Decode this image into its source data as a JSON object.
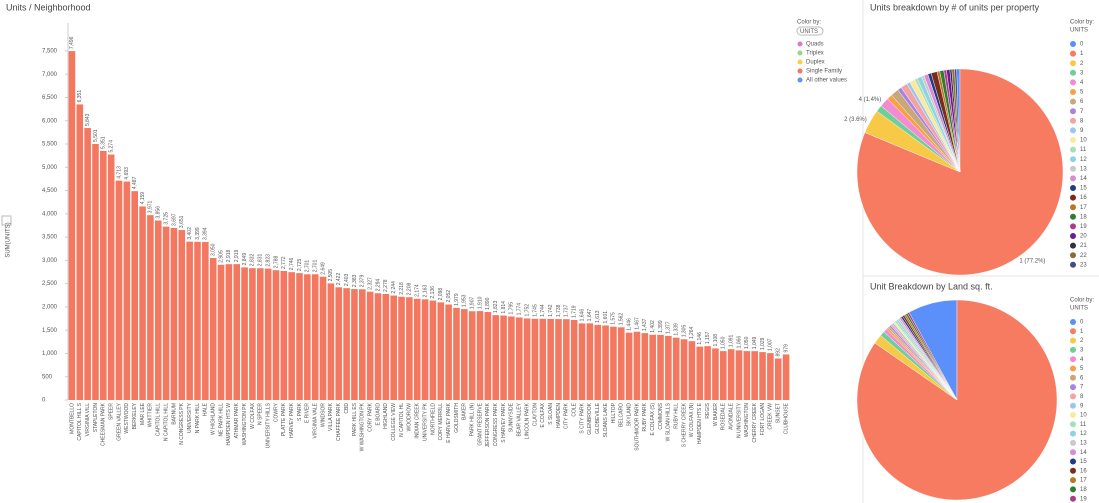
{
  "chart_data": [
    {
      "type": "bar",
      "title": "Units / Neighborhood",
      "y_label": "SUM(UNITS)",
      "color": "#f4775f",
      "legend_title": "Color by:",
      "legend_field": "UNITS",
      "legend": [
        {
          "name": "Quads",
          "color": "#e377c2"
        },
        {
          "name": "Triplex",
          "color": "#8fd98f"
        },
        {
          "name": "Duplex",
          "color": "#f7d04a"
        },
        {
          "name": "Single Family",
          "color": "#f4775f"
        },
        {
          "name": "All other values",
          "color": "#6b8ff0"
        }
      ],
      "categories": [
        "MONTBELLO",
        "CAPITOL HILL S",
        "VIRGINIA VILL",
        "STAPLETON",
        "CHEESMAN PARK",
        "SPEER",
        "GREEN VALLEY",
        "WESTWOOD",
        "BERKELEY",
        "MAR LEE",
        "WHITTIER",
        "CAPITOL HILL",
        "N CAPITOL HILL",
        "BARNUM",
        "N CONGRESS PK",
        "UNIVERSITY",
        "N PARK HILL",
        "HALE",
        "W HIGHLAND",
        "NE PARK HILL",
        "HAMPDEN HTS W",
        "ATHMAR PARK",
        "WASHINGTON PK",
        "W COLFAX",
        "N SPEER",
        "UNIVERSITY HILLS",
        "COWRY",
        "PLATTE PARK",
        "HARVEY PARK",
        "S PARK",
        "E RIVER",
        "VIRGINIA VALE",
        "WINDSOR",
        "VILLA PARK",
        "CHAFFEE PARK",
        "CBD",
        "PARK HILL ES",
        "W WASHINGTON PK",
        "CORY PARK",
        "E BOARD",
        "HIGHLAND",
        "COLLEGE VIEW",
        "N CAPITOL HL",
        "WOODROW",
        "INDIAN CREEK",
        "UNIVERSITY PK",
        "NORTHFIELD",
        "CORY MERRILL",
        "E HARVEY PARK",
        "GOLDSMITH",
        "BAKER",
        "PARK HILL (N)",
        "GRANT RESERVE",
        "JEFFERSON PARK",
        "CONGRESS PARK",
        "S HARVEY PARK",
        "SUNNYSIDE",
        "BEAR VALLEY",
        "LINCOLN PARK",
        "CLAYTON",
        "E COLFAX",
        "S SLOAN",
        "HAMPDEN",
        "CITY PARK",
        "COLE",
        "S CITY PARK",
        "GLENBROOK",
        "GLOBEVILLE",
        "SLOANS LAKE",
        "HILLTOP",
        "BELCARO",
        "SKYLAND",
        "SOUTHMOOR PARK",
        "RUBY PARK",
        "E COLFAX (S)",
        "COMMONS",
        "W SLOAN HILLS",
        "RUBY HILL",
        "S CHERRY CREEK",
        "W COLFAX (N)",
        "HAMPDEN HTS E",
        "REGIS",
        "W BAKER",
        "ROSEDALE",
        "AVONDALE",
        "N UNIVERSITY",
        "WASHINGTON",
        "CHERRY CREEK",
        "FORT LOGAN",
        "CREEK VW",
        "SUNSET",
        "CLUBHOUSE"
      ],
      "values": [
        7496,
        6351,
        5843,
        5501,
        5351,
        5274,
        4713,
        4693,
        4487,
        4159,
        3971,
        3856,
        3725,
        3697,
        3651,
        3402,
        3399,
        3394,
        3050,
        2905,
        2918,
        2919,
        2849,
        2832,
        2831,
        2823,
        2788,
        2772,
        2746,
        2725,
        2701,
        2701,
        2649,
        2505,
        2422,
        2403,
        2383,
        2379,
        2327,
        2294,
        2278,
        2244,
        2218,
        2208,
        2174,
        2163,
        2136,
        2098,
        2052,
        1979,
        1953,
        1907,
        1910,
        1890,
        1823,
        1814,
        1795,
        1774,
        1752,
        1745,
        1744,
        1742,
        1738,
        1737,
        1719,
        1646,
        1647,
        1613,
        1601,
        1575,
        1562,
        1446,
        1467,
        1437,
        1402,
        1399,
        1377,
        1339,
        1305,
        1264,
        1146,
        1157,
        1108,
        1050,
        1091,
        1066,
        1050,
        1049,
        1029,
        1007,
        892,
        979
      ],
      "value_labels": [
        "7,496",
        "6,351",
        "5,843",
        "5,501",
        "5,351",
        "5,274",
        "4,713",
        "4,693",
        "4,487",
        "4,159",
        "3,971",
        "3,856",
        "3,725",
        "3,697",
        "3,651",
        "3,402",
        "3,399",
        "3,394",
        "3,050",
        "2,905",
        "2,918",
        "2,919",
        "2,849",
        "2,832",
        "2,831",
        "2,823",
        "2,788",
        "2,772",
        "2,746",
        "2,725",
        "2,701",
        "2,701",
        "2,649",
        "2,505",
        "2,422",
        "2,403",
        "2,383",
        "2,379",
        "2,327",
        "2,294",
        "2,278",
        "2,244",
        "2,218",
        "2,208",
        "2,174",
        "2,163",
        "2,136",
        "2,098",
        "2,052",
        "1,979",
        "1,953",
        "1,907",
        "1,910",
        "1,890",
        "1,823",
        "1,814",
        "1,795",
        "1,774",
        "1,752",
        "1,745",
        "1,744",
        "1,742",
        "1,738",
        "1,737",
        "1,719",
        "1,646",
        "1,647",
        "1,613",
        "1,601",
        "1,575",
        "1,562",
        "1,446",
        "1,467",
        "1,437",
        "1,402",
        "1,399",
        "1,377",
        "1,339",
        "1,305",
        "1,264",
        "1,146",
        "1,157",
        "1,108",
        "1,050",
        "1,091",
        "1,066",
        "1,050",
        "1,049",
        "1,029",
        "1,007",
        "892",
        "979"
      ],
      "ylim": [
        0,
        8100
      ],
      "yticks": [
        0,
        500,
        {
          "value": 1000,
          "label": "1,000"
        },
        {
          "value": 1500,
          "label": "1,500"
        },
        {
          "value": 2000,
          "label": "2,000"
        },
        {
          "value": 2500,
          "label": "2,500"
        },
        {
          "value": 3000,
          "label": "3,000"
        },
        {
          "value": 3500,
          "label": "3,500"
        },
        {
          "value": 4000,
          "label": "4,000"
        },
        {
          "value": 4500,
          "label": "4,500"
        },
        {
          "value": 5000,
          "label": "5,000"
        },
        {
          "value": 5500,
          "label": "5,500"
        },
        {
          "value": 6000,
          "label": "6,000"
        },
        {
          "value": 6500,
          "label": "6,500"
        },
        {
          "value": 7000,
          "label": "7,000"
        },
        {
          "value": 7500,
          "label": "7,500"
        }
      ],
      "grid": false
    },
    {
      "type": "pie",
      "title": "Units breakdown by # of units per property",
      "legend_title": "Color by:",
      "legend_field": "UNITS",
      "categories": [
        "0",
        "1",
        "2",
        "3",
        "4",
        "5",
        "6",
        "7",
        "8",
        "9",
        "10",
        "11",
        "12",
        "13",
        "14",
        "15",
        "16",
        "17",
        "18",
        "19",
        "20",
        "21",
        "22",
        "23"
      ],
      "colors": [
        "#5b8ff9",
        "#f67b61",
        "#f8c946",
        "#6fcf97",
        "#f28bd1",
        "#f7a04a",
        "#c7a87a",
        "#a783e6",
        "#f4a3a3",
        "#9ac6f0",
        "#fbe99b",
        "#a8e0b5",
        "#8fd3e0",
        "#c9c9c9",
        "#d98cd1",
        "#1f3b8a",
        "#7a2e1a",
        "#b77a20",
        "#2e7d32",
        "#b03a8a",
        "#6a1b9a",
        "#333333",
        "#8c6d3a",
        "#444a8a"
      ],
      "values": [
        0.5,
        77.2,
        3.6,
        1.0,
        1.4,
        0.8,
        1.2,
        0.6,
        1.0,
        0.5,
        0.8,
        0.4,
        0.7,
        0.4,
        0.6,
        0.5,
        0.9,
        0.4,
        0.6,
        0.4,
        0.5,
        0.3,
        0.4,
        0.3
      ],
      "value_labels": [
        null,
        "1 (77.2%)",
        "2 (3.6%)",
        null,
        "4 (1.4%)",
        null,
        null,
        null,
        null,
        null,
        null,
        null,
        null,
        null,
        null,
        null,
        null,
        null,
        null,
        null,
        null,
        null,
        null,
        null
      ]
    },
    {
      "type": "pie",
      "title": "Unit Breakdown by Land sq. ft.",
      "legend_title": "Color by:",
      "legend_field": "UNITS",
      "categories": [
        "0",
        "1",
        "2",
        "3",
        "4",
        "5",
        "6",
        "7",
        "8",
        "9",
        "10",
        "11",
        "12",
        "13",
        "14",
        "15",
        "16",
        "17",
        "18",
        "19"
      ],
      "colors": [
        "#5b8ff9",
        "#f67b61",
        "#f8c946",
        "#6fcf97",
        "#f28bd1",
        "#f7a04a",
        "#c7a87a",
        "#a783e6",
        "#f4a3a3",
        "#9ac6f0",
        "#fbe99b",
        "#a8e0b5",
        "#8fd3e0",
        "#c9c9c9",
        "#d98cd1",
        "#1f3b8a",
        "#7a2e1a",
        "#b77a20",
        "#2e7d32",
        "#b03a8a"
      ],
      "values": [
        8,
        85,
        1.5,
        0.8,
        0.6,
        0.3,
        0.3,
        0.3,
        0.3,
        0.3,
        0.3,
        0.3,
        0.3,
        0.3,
        0.3,
        0.3,
        0.3,
        0.3,
        0.3,
        0.3
      ]
    }
  ]
}
